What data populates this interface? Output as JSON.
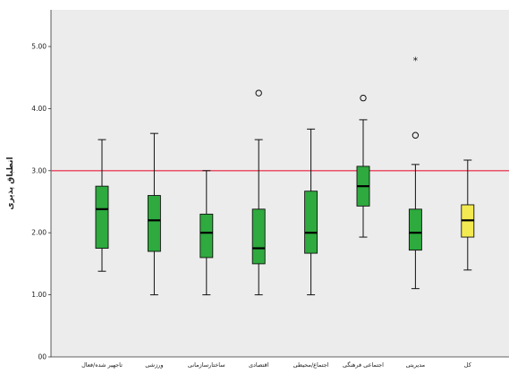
{
  "chart_data": {
    "type": "boxplot",
    "title": "",
    "xlabel": "",
    "ylabel": "انطباق پذیری",
    "ylim": [
      0,
      5.5
    ],
    "y_ticks": [
      "00",
      "1.00",
      "2.00",
      "3.00",
      "4.00",
      "5.00"
    ],
    "y_tick_values": [
      0,
      1,
      2,
      3,
      4,
      5
    ],
    "reference_line": {
      "y": 3.0,
      "color": "#e8405a"
    },
    "grid": false,
    "background": "#ececec",
    "colors": {
      "box_default": "#2eaa3f",
      "box_highlight": "#f3ea52",
      "outline": "#111111"
    },
    "categories": [
      "تاجهیر شده/فعال",
      "ورزشی",
      "ساختارسازمانی",
      "اقتصادی",
      "اجتماع/محیطی",
      "اجتماعی فرهنگی",
      "مدیریتی",
      "کل"
    ],
    "boxes": [
      {
        "min": 1.38,
        "q1": 1.75,
        "median": 2.38,
        "q3": 2.75,
        "max": 3.5,
        "outliers": [],
        "extremes": [],
        "highlight": false
      },
      {
        "min": 1.0,
        "q1": 1.7,
        "median": 2.2,
        "q3": 2.6,
        "max": 3.6,
        "outliers": [],
        "extremes": [],
        "highlight": false
      },
      {
        "min": 1.0,
        "q1": 1.6,
        "median": 2.0,
        "q3": 2.3,
        "max": 3.0,
        "outliers": [],
        "extremes": [],
        "highlight": false
      },
      {
        "min": 1.0,
        "q1": 1.5,
        "median": 1.75,
        "q3": 2.38,
        "max": 3.5,
        "outliers": [
          4.25
        ],
        "extremes": [],
        "highlight": false
      },
      {
        "min": 1.0,
        "q1": 1.67,
        "median": 2.0,
        "q3": 2.67,
        "max": 3.67,
        "outliers": [],
        "extremes": [],
        "highlight": false
      },
      {
        "min": 1.93,
        "q1": 2.43,
        "median": 2.75,
        "q3": 3.07,
        "max": 3.82,
        "outliers": [
          4.17
        ],
        "extremes": [],
        "highlight": false
      },
      {
        "min": 1.1,
        "q1": 1.72,
        "median": 2.0,
        "q3": 2.38,
        "max": 3.1,
        "outliers": [
          3.57
        ],
        "extremes": [
          4.78
        ],
        "highlight": false
      },
      {
        "min": 1.4,
        "q1": 1.93,
        "median": 2.2,
        "q3": 2.45,
        "max": 3.17,
        "outliers": [],
        "extremes": [],
        "highlight": true
      }
    ]
  }
}
